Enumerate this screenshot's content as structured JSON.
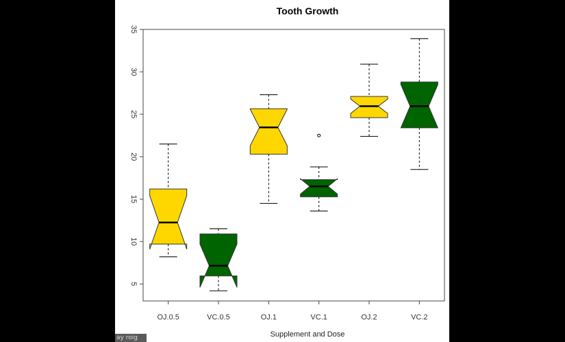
{
  "chart_data": {
    "type": "box",
    "title": "Tooth Growth",
    "xlabel": "Supplement and Dose",
    "ylabel": "",
    "ylim": [
      3,
      35
    ],
    "yticks": [
      5,
      10,
      15,
      20,
      25,
      30,
      35
    ],
    "notched": true,
    "categories": [
      "OJ.0.5",
      "VC.0.5",
      "OJ.1",
      "VC.1",
      "OJ.2",
      "VC.2"
    ],
    "boxes": [
      {
        "label": "OJ.0.5",
        "whisker_low": 8.2,
        "q1": 9.7,
        "median": 12.25,
        "q3": 16.2,
        "whisker_high": 21.5,
        "notch_low": 9.1,
        "notch_high": 15.4,
        "outliers": [],
        "color": "#ffd700"
      },
      {
        "label": "VC.0.5",
        "whisker_low": 4.2,
        "q1": 5.95,
        "median": 7.15,
        "q3": 10.9,
        "whisker_high": 11.5,
        "notch_low": 4.6,
        "notch_high": 9.7,
        "outliers": [],
        "color": "#006400"
      },
      {
        "label": "OJ.1",
        "whisker_low": 14.5,
        "q1": 20.3,
        "median": 23.45,
        "q3": 25.65,
        "whisker_high": 27.3,
        "notch_low": 21.3,
        "notch_high": 25.6,
        "outliers": [],
        "color": "#ffd700"
      },
      {
        "label": "VC.1",
        "whisker_low": 13.6,
        "q1": 15.27,
        "median": 16.5,
        "q3": 17.3,
        "whisker_high": 18.8,
        "notch_low": 15.6,
        "notch_high": 17.4,
        "outliers": [
          22.5
        ],
        "color": "#006400"
      },
      {
        "label": "OJ.2",
        "whisker_low": 22.4,
        "q1": 24.6,
        "median": 25.95,
        "q3": 27.1,
        "whisker_high": 30.9,
        "notch_low": 25.1,
        "notch_high": 26.8,
        "outliers": [],
        "color": "#ffd700"
      },
      {
        "label": "VC.2",
        "whisker_low": 18.5,
        "q1": 23.4,
        "median": 25.95,
        "q3": 28.8,
        "whisker_high": 33.9,
        "notch_low": 23.4,
        "notch_high": 28.5,
        "outliers": [],
        "color": "#006400"
      }
    ]
  },
  "watermark": "ay roig"
}
